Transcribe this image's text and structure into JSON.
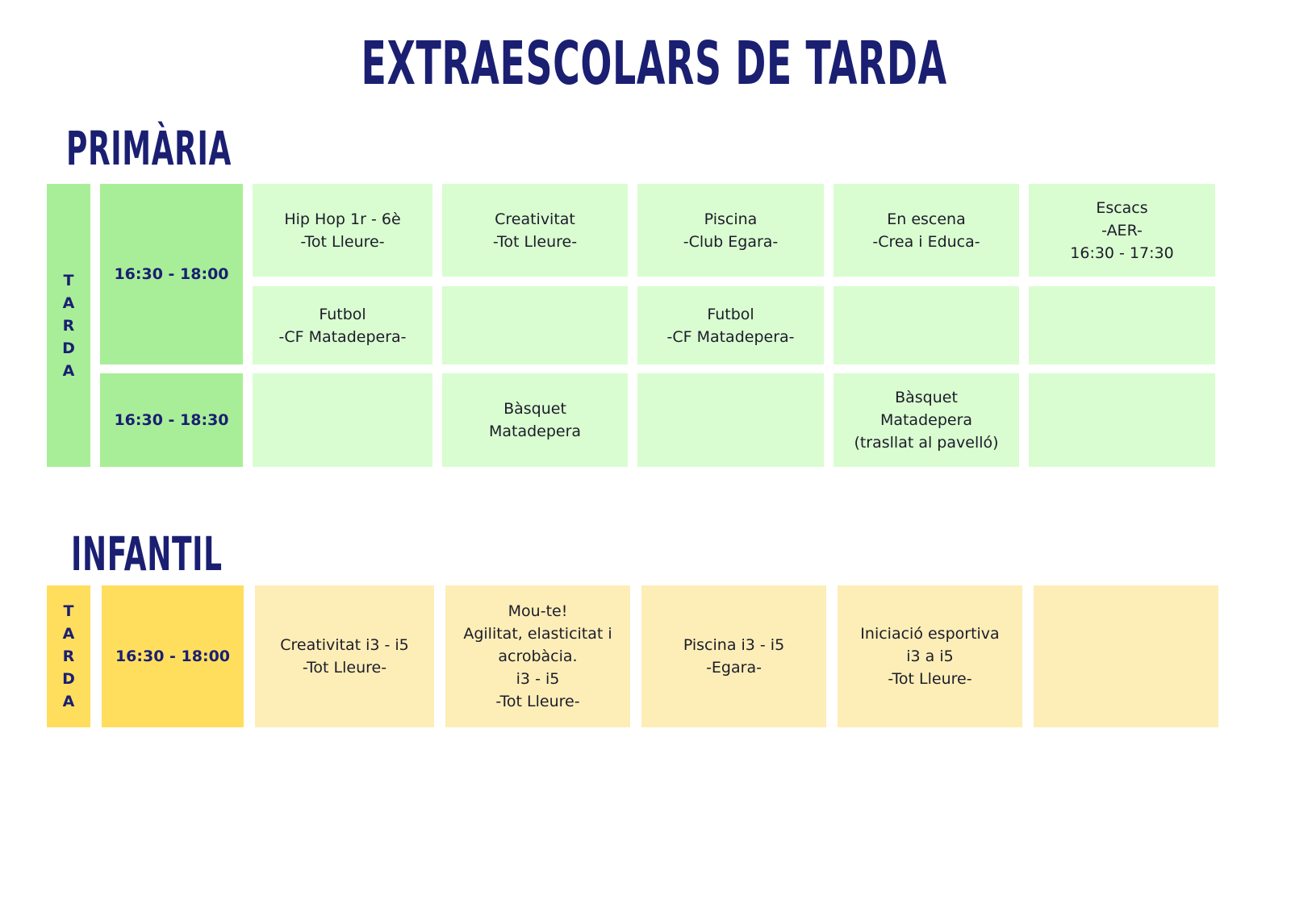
{
  "title": "EXTRAESCOLARS DE TARDA",
  "primaria": {
    "heading": "PRIMÀRIA",
    "side_label": [
      "T",
      "A",
      "R",
      "D",
      "A"
    ],
    "time_1": "16:30 - 18:00",
    "time_2": "16:30 - 18:30",
    "row1": [
      "Hip Hop 1r - 6è\n-Tot Lleure-",
      "Creativitat\n-Tot Lleure-",
      "Piscina\n-Club Egara-",
      "En escena\n-Crea i Educa-",
      "Escacs\n-AER-\n16:30 - 17:30"
    ],
    "row2": [
      "Futbol\n-CF Matadepera-",
      "",
      "Futbol\n-CF Matadepera-",
      "",
      ""
    ],
    "row3": [
      "",
      "Bàsquet\nMatadepera",
      "",
      "Bàsquet\nMatadepera\n(trasllat al pavelló)",
      ""
    ]
  },
  "infantil": {
    "heading": "INFANTIL",
    "side_label": [
      "T",
      "A",
      "R",
      "D",
      "A"
    ],
    "time_1": "16:30 - 18:00",
    "row1": [
      "Creativitat i3 - i5\n-Tot Lleure-",
      "Mou-te!\nAgilitat, elasticitat  i\nacrobàcia.\ni3 - i5\n-Tot Lleure-",
      "Piscina i3 - i5\n-Egara-",
      "Iniciació esportiva\ni3 a i5\n-Tot Lleure-",
      ""
    ]
  },
  "colors": {
    "title": "#1a1f72",
    "green_dark": "#a8ee98",
    "green_light": "#d9fdd0",
    "yellow_dark": "#ffde5e",
    "yellow_light": "#fdeeb7"
  }
}
